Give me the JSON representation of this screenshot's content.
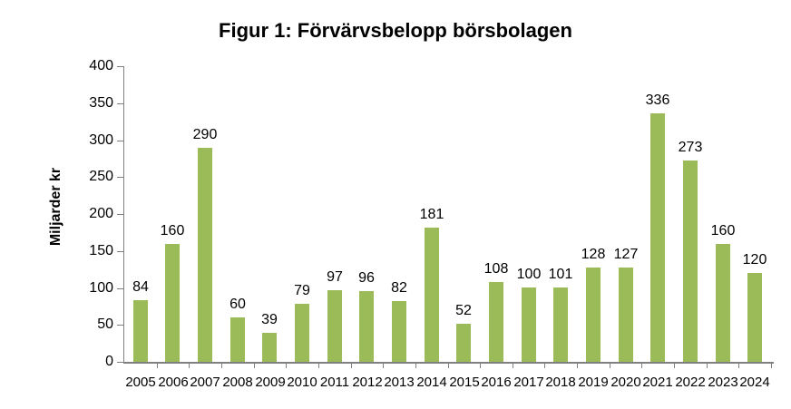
{
  "chart_data": {
    "type": "bar",
    "title": "Figur 1: Förvärvsbelopp börsbolagen",
    "xlabel": "",
    "ylabel": "Miljarder kr",
    "categories": [
      "2005",
      "2006",
      "2007",
      "2008",
      "2009",
      "2010",
      "2011",
      "2012",
      "2013",
      "2014",
      "2015",
      "2016",
      "2017",
      "2018",
      "2019",
      "2020",
      "2021",
      "2022",
      "2023",
      "2024"
    ],
    "values": [
      84,
      160,
      290,
      60,
      39,
      79,
      97,
      96,
      82,
      181,
      52,
      108,
      100,
      101,
      128,
      127,
      336,
      273,
      160,
      120
    ],
    "ylim": [
      0,
      400
    ],
    "yticks": [
      0,
      50,
      100,
      150,
      200,
      250,
      300,
      350,
      400
    ],
    "data_labels": true,
    "grid": false,
    "legend": false,
    "bar_color": "#9BBB59",
    "axis_color": "#808080",
    "text_color": "#000000"
  }
}
